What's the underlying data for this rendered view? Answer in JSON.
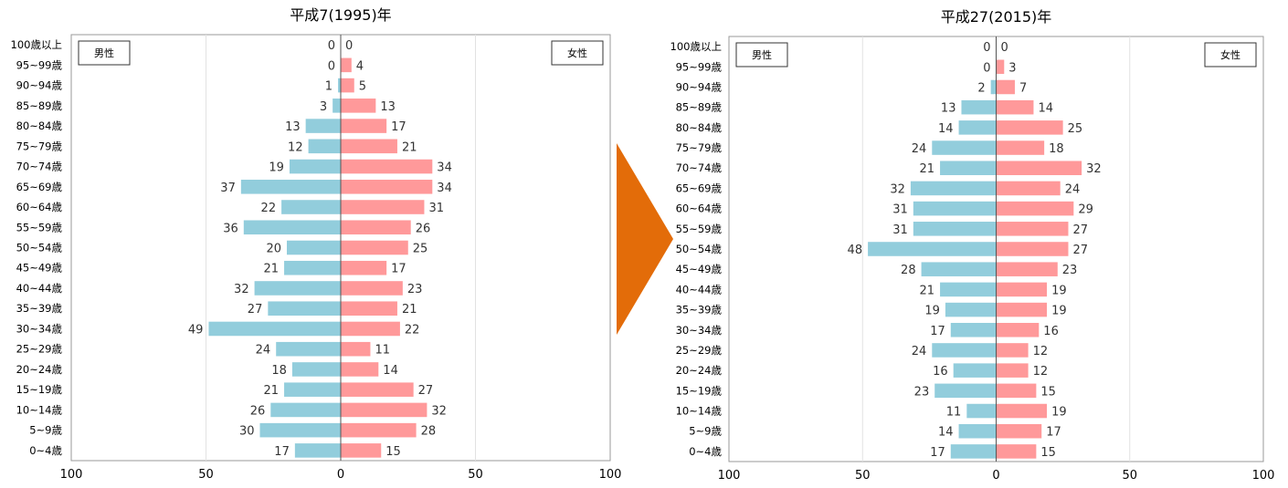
{
  "age_groups": [
    "100歳以上",
    "95~99歳",
    "90~94歳",
    "85~89歳",
    "80~84歳",
    "75~79歳",
    "70~74歳",
    "65~69歳",
    "60~64歳",
    "55~59歳",
    "50~54歳",
    "45~49歳",
    "40~44歳",
    "35~39歳",
    "30~34歳",
    "25~29歳",
    "20~24歳",
    "15~19歳",
    "10~14歳",
    "5~9歳",
    "0~4歳"
  ],
  "chart_data": [
    {
      "type": "bar",
      "orientation": "horizontal",
      "title": "平成7(1995)年",
      "categories": [
        "100歳以上",
        "95~99歳",
        "90~94歳",
        "85~89歳",
        "80~84歳",
        "75~79歳",
        "70~74歳",
        "65~69歳",
        "60~64歳",
        "55~59歳",
        "50~54歳",
        "45~49歳",
        "40~44歳",
        "35~39歳",
        "30~34歳",
        "25~29歳",
        "20~24歳",
        "15~19歳",
        "10~14歳",
        "5~9歳",
        "0~4歳"
      ],
      "series": [
        {
          "name": "男性",
          "color": "#92cddc",
          "values": [
            0,
            0,
            1,
            3,
            13,
            12,
            19,
            37,
            22,
            36,
            20,
            21,
            32,
            27,
            49,
            24,
            18,
            21,
            26,
            30,
            17
          ]
        },
        {
          "name": "女性",
          "color": "#ff999a",
          "values": [
            0,
            4,
            5,
            13,
            17,
            21,
            34,
            34,
            31,
            26,
            25,
            17,
            23,
            21,
            22,
            11,
            14,
            27,
            32,
            28,
            15
          ]
        }
      ],
      "xlim": [
        -100,
        100
      ],
      "x_ticks": [
        "100",
        "50",
        "0",
        "50",
        "100"
      ],
      "grid": true
    },
    {
      "type": "bar",
      "orientation": "horizontal",
      "title": "平成27(2015)年",
      "categories": [
        "100歳以上",
        "95~99歳",
        "90~94歳",
        "85~89歳",
        "80~84歳",
        "75~79歳",
        "70~74歳",
        "65~69歳",
        "60~64歳",
        "55~59歳",
        "50~54歳",
        "45~49歳",
        "40~44歳",
        "35~39歳",
        "30~34歳",
        "25~29歳",
        "20~24歳",
        "15~19歳",
        "10~14歳",
        "5~9歳",
        "0~4歳"
      ],
      "series": [
        {
          "name": "男性",
          "color": "#92cddc",
          "values": [
            0,
            0,
            2,
            13,
            14,
            24,
            21,
            32,
            31,
            31,
            48,
            28,
            21,
            19,
            17,
            24,
            16,
            23,
            11,
            14,
            17
          ]
        },
        {
          "name": "女性",
          "color": "#ff999a",
          "values": [
            0,
            3,
            7,
            14,
            25,
            18,
            32,
            24,
            29,
            27,
            27,
            23,
            19,
            19,
            16,
            12,
            12,
            15,
            19,
            17,
            15
          ]
        }
      ],
      "xlim": [
        -100,
        100
      ],
      "x_ticks": [
        "100",
        "50",
        "0",
        "50",
        "100"
      ],
      "grid": true
    }
  ],
  "arrow_color": "#e36c09"
}
